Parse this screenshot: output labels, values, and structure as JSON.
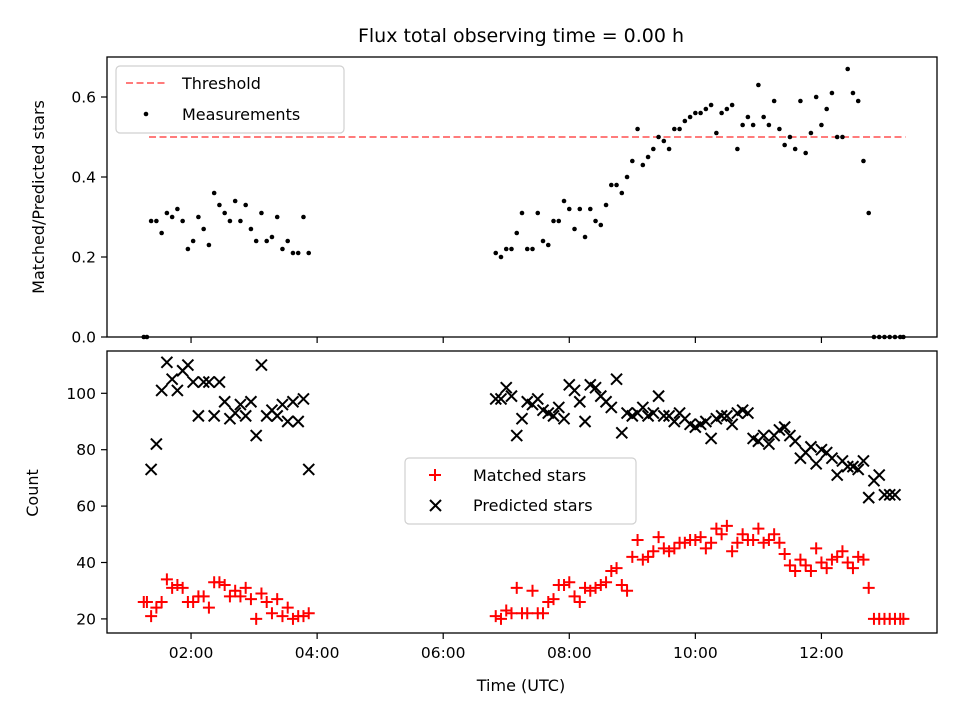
{
  "chart_data": [
    {
      "type": "scatter",
      "title": "Flux total observing time = 0.00 h",
      "xlabel": "",
      "ylabel": "Matched/Predicted stars",
      "xlim": [
        "00:40",
        "13:50"
      ],
      "ylim": [
        0,
        0.7
      ],
      "xticks": [
        "02:00",
        "04:00",
        "06:00",
        "08:00",
        "10:00",
        "12:00"
      ],
      "xtick_labels_shown": false,
      "yticks": [
        0.0,
        0.2,
        0.4,
        0.6
      ],
      "yticklabels": [
        "0.0",
        "0.2",
        "0.4",
        "0.6"
      ],
      "legend_position": "top-left",
      "threshold": {
        "name": "Threshold",
        "y": 0.5,
        "x_start": "01:20",
        "x_end": "13:20",
        "color": "#ff7b7b",
        "style": "dashed"
      },
      "series": [
        {
          "name": "Measurements",
          "color": "#000000",
          "marker": "dot",
          "x": [
            "01:15",
            "01:18",
            "01:22",
            "01:27",
            "01:32",
            "01:37",
            "01:42",
            "01:47",
            "01:52",
            "01:57",
            "02:02",
            "02:07",
            "02:12",
            "02:17",
            "02:22",
            "02:27",
            "02:32",
            "02:37",
            "02:42",
            "02:47",
            "02:52",
            "02:57",
            "03:02",
            "03:07",
            "03:12",
            "03:17",
            "03:22",
            "03:27",
            "03:32",
            "03:37",
            "03:42",
            "03:47",
            "03:52",
            "06:50",
            "06:55",
            "07:00",
            "07:05",
            "07:10",
            "07:15",
            "07:20",
            "07:25",
            "07:30",
            "07:35",
            "07:40",
            "07:45",
            "07:50",
            "07:55",
            "08:00",
            "08:05",
            "08:10",
            "08:15",
            "08:20",
            "08:25",
            "08:30",
            "08:35",
            "08:40",
            "08:45",
            "08:50",
            "08:55",
            "09:00",
            "09:05",
            "09:10",
            "09:15",
            "09:20",
            "09:25",
            "09:30",
            "09:35",
            "09:40",
            "09:45",
            "09:50",
            "09:55",
            "10:00",
            "10:05",
            "10:10",
            "10:15",
            "10:20",
            "10:25",
            "10:30",
            "10:35",
            "10:40",
            "10:45",
            "10:50",
            "10:55",
            "11:00",
            "11:05",
            "11:10",
            "11:15",
            "11:20",
            "11:25",
            "11:30",
            "11:35",
            "11:40",
            "11:45",
            "11:50",
            "11:55",
            "12:00",
            "12:05",
            "12:10",
            "12:15",
            "12:20",
            "12:25",
            "12:30",
            "12:35",
            "12:40",
            "12:45",
            "12:50",
            "12:55",
            "13:00",
            "13:05",
            "13:10",
            "13:15",
            "13:18"
          ],
          "y": [
            0.0,
            0.0,
            0.29,
            0.29,
            0.26,
            0.31,
            0.3,
            0.32,
            0.29,
            0.22,
            0.24,
            0.3,
            0.27,
            0.23,
            0.36,
            0.33,
            0.31,
            0.29,
            0.34,
            0.29,
            0.33,
            0.27,
            0.24,
            0.31,
            0.24,
            0.25,
            0.3,
            0.22,
            0.24,
            0.21,
            0.21,
            0.3,
            0.21,
            0.21,
            0.2,
            0.22,
            0.22,
            0.26,
            0.31,
            0.22,
            0.22,
            0.31,
            0.24,
            0.23,
            0.29,
            0.29,
            0.34,
            0.32,
            0.27,
            0.32,
            0.25,
            0.32,
            0.29,
            0.28,
            0.33,
            0.38,
            0.38,
            0.36,
            0.4,
            0.44,
            0.52,
            0.43,
            0.45,
            0.47,
            0.5,
            0.49,
            0.47,
            0.52,
            0.52,
            0.54,
            0.55,
            0.56,
            0.56,
            0.57,
            0.58,
            0.51,
            0.56,
            0.57,
            0.58,
            0.47,
            0.53,
            0.55,
            0.53,
            0.63,
            0.55,
            0.53,
            0.59,
            0.52,
            0.48,
            0.5,
            0.47,
            0.59,
            0.46,
            0.51,
            0.6,
            0.53,
            0.57,
            0.61,
            0.5,
            0.5,
            0.67,
            0.61,
            0.59,
            0.44,
            0.31,
            0.0,
            0.0,
            0.0,
            0.0,
            0.0,
            0.0,
            0.0
          ]
        }
      ]
    },
    {
      "type": "scatter",
      "xlabel": "Time (UTC)",
      "ylabel": "Count",
      "xlim": [
        "00:40",
        "13:50"
      ],
      "ylim": [
        15,
        115
      ],
      "xticks": [
        "02:00",
        "04:00",
        "06:00",
        "08:00",
        "10:00",
        "12:00"
      ],
      "xticklabels": [
        "02:00",
        "04:00",
        "06:00",
        "08:00",
        "10:00",
        "12:00"
      ],
      "yticks": [
        20,
        40,
        60,
        80,
        100
      ],
      "yticklabels": [
        "20",
        "40",
        "60",
        "80",
        "100"
      ],
      "legend_position": "center",
      "series": [
        {
          "name": "Matched stars",
          "color": "#ff0000",
          "marker": "plus",
          "x": [
            "01:15",
            "01:18",
            "01:22",
            "01:27",
            "01:32",
            "01:37",
            "01:42",
            "01:47",
            "01:52",
            "01:57",
            "02:02",
            "02:07",
            "02:12",
            "02:17",
            "02:22",
            "02:27",
            "02:32",
            "02:37",
            "02:42",
            "02:47",
            "02:52",
            "02:57",
            "03:02",
            "03:07",
            "03:12",
            "03:17",
            "03:22",
            "03:27",
            "03:32",
            "03:37",
            "03:42",
            "03:47",
            "03:52",
            "06:50",
            "06:55",
            "07:00",
            "07:05",
            "07:10",
            "07:15",
            "07:20",
            "07:25",
            "07:30",
            "07:35",
            "07:40",
            "07:45",
            "07:50",
            "07:55",
            "08:00",
            "08:05",
            "08:10",
            "08:15",
            "08:20",
            "08:25",
            "08:30",
            "08:35",
            "08:40",
            "08:45",
            "08:50",
            "08:55",
            "09:00",
            "09:05",
            "09:10",
            "09:15",
            "09:20",
            "09:25",
            "09:30",
            "09:35",
            "09:40",
            "09:45",
            "09:50",
            "09:55",
            "10:00",
            "10:05",
            "10:10",
            "10:15",
            "10:20",
            "10:25",
            "10:30",
            "10:35",
            "10:40",
            "10:45",
            "10:50",
            "10:55",
            "11:00",
            "11:05",
            "11:10",
            "11:15",
            "11:20",
            "11:25",
            "11:30",
            "11:35",
            "11:40",
            "11:45",
            "11:50",
            "11:55",
            "12:00",
            "12:05",
            "12:10",
            "12:15",
            "12:20",
            "12:25",
            "12:30",
            "12:35",
            "12:40",
            "12:45",
            "12:50",
            "12:55",
            "13:00",
            "13:05",
            "13:10",
            "13:15",
            "13:18"
          ],
          "y": [
            26,
            26,
            21,
            24,
            26,
            34,
            31,
            32,
            31,
            26,
            26,
            28,
            28,
            24,
            33,
            33,
            32,
            28,
            30,
            28,
            31,
            27,
            20,
            29,
            26,
            22,
            27,
            21,
            24,
            20,
            21,
            21,
            22,
            21,
            20,
            23,
            22,
            31,
            22,
            22,
            30,
            22,
            22,
            26,
            27,
            32,
            32,
            33,
            28,
            26,
            31,
            30,
            31,
            32,
            33,
            37,
            38,
            32,
            30,
            42,
            48,
            41,
            42,
            44,
            49,
            45,
            44,
            45,
            47,
            47,
            48,
            48,
            49,
            45,
            47,
            52,
            50,
            53,
            44,
            47,
            50,
            48,
            48,
            52,
            47,
            48,
            50,
            47,
            43,
            39,
            37,
            41,
            39,
            37,
            45,
            40,
            38,
            41,
            42,
            44,
            40,
            38,
            42,
            41,
            31,
            20,
            20,
            20,
            20,
            20,
            20,
            20
          ]
        },
        {
          "name": "Predicted stars",
          "color": "#000000",
          "marker": "x",
          "x": [
            "01:22",
            "01:27",
            "01:32",
            "01:37",
            "01:42",
            "01:47",
            "01:52",
            "01:57",
            "02:02",
            "02:07",
            "02:12",
            "02:17",
            "02:22",
            "02:27",
            "02:32",
            "02:37",
            "02:42",
            "02:47",
            "02:52",
            "02:57",
            "03:02",
            "03:07",
            "03:12",
            "03:17",
            "03:22",
            "03:27",
            "03:32",
            "03:37",
            "03:42",
            "03:47",
            "03:52",
            "06:50",
            "06:55",
            "07:00",
            "07:05",
            "07:10",
            "07:15",
            "07:20",
            "07:25",
            "07:30",
            "07:35",
            "07:40",
            "07:45",
            "07:50",
            "07:55",
            "08:00",
            "08:05",
            "08:10",
            "08:15",
            "08:20",
            "08:25",
            "08:30",
            "08:35",
            "08:40",
            "08:45",
            "08:50",
            "08:55",
            "09:00",
            "09:05",
            "09:10",
            "09:15",
            "09:20",
            "09:25",
            "09:30",
            "09:35",
            "09:40",
            "09:45",
            "09:50",
            "09:55",
            "10:00",
            "10:05",
            "10:10",
            "10:15",
            "10:20",
            "10:25",
            "10:30",
            "10:35",
            "10:40",
            "10:45",
            "10:50",
            "10:55",
            "11:00",
            "11:05",
            "11:10",
            "11:15",
            "11:20",
            "11:25",
            "11:30",
            "11:35",
            "11:40",
            "11:45",
            "11:50",
            "11:55",
            "12:00",
            "12:05",
            "12:10",
            "12:15",
            "12:20",
            "12:25",
            "12:30",
            "12:35",
            "12:40",
            "12:45",
            "12:50",
            "12:55",
            "13:00",
            "13:05",
            "13:10"
          ],
          "y": [
            73,
            82,
            101,
            111,
            105,
            101,
            108,
            110,
            104,
            92,
            104,
            104,
            92,
            104,
            97,
            91,
            93,
            96,
            92,
            97,
            85,
            110,
            92,
            94,
            92,
            96,
            90,
            97,
            90,
            98,
            73,
            98,
            98,
            102,
            99,
            85,
            91,
            97,
            96,
            98,
            94,
            93,
            92,
            95,
            91,
            103,
            101,
            97,
            90,
            103,
            102,
            99,
            97,
            95,
            105,
            86,
            93,
            92,
            93,
            95,
            92,
            93,
            99,
            92,
            92,
            90,
            93,
            91,
            89,
            88,
            89,
            90,
            84,
            91,
            92,
            92,
            89,
            93,
            94,
            93,
            84,
            83,
            85,
            82,
            85,
            87,
            88,
            85,
            83,
            77,
            79,
            81,
            75,
            80,
            79,
            77,
            71,
            76,
            74,
            74,
            73,
            76,
            63,
            69,
            71,
            64,
            64,
            64
          ]
        }
      ]
    }
  ]
}
